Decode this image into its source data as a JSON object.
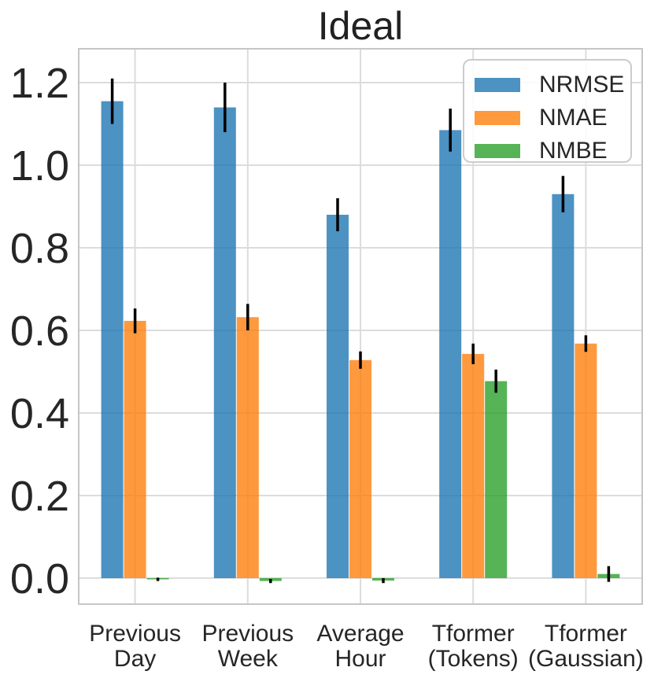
{
  "chart_data": {
    "type": "bar",
    "title": "Ideal",
    "categories": [
      "Previous Day",
      "Previous Week",
      "Average Hour",
      "Tformer (Tokens)",
      "Tformer (Gaussian)"
    ],
    "series": [
      {
        "name": "NRMSE",
        "color": "#1f77b4",
        "values": [
          1.155,
          1.14,
          0.88,
          1.085,
          0.93
        ],
        "errors": [
          0.055,
          0.06,
          0.04,
          0.052,
          0.044
        ]
      },
      {
        "name": "NMAE",
        "color": "#ff7f0e",
        "values": [
          0.623,
          0.632,
          0.528,
          0.543,
          0.568
        ],
        "errors": [
          0.03,
          0.032,
          0.021,
          0.025,
          0.02
        ]
      },
      {
        "name": "NMBE",
        "color": "#2ca02c",
        "values": [
          -0.003,
          -0.007,
          -0.006,
          0.477,
          0.01
        ],
        "errors": [
          0.004,
          0.005,
          0.006,
          0.028,
          0.019
        ]
      }
    ],
    "yticks": [
      "0.0",
      "0.2",
      "0.4",
      "0.6",
      "0.8",
      "1.0",
      "1.2"
    ],
    "ylim": [
      -0.063,
      1.282
    ],
    "xlabel": "",
    "ylabel": "",
    "grid": true,
    "bar_alpha": 0.8,
    "legend_position": "upper right"
  },
  "colors": {
    "grid": "#dcdcdc",
    "spine": "#c6c6c6",
    "text": "#262626",
    "errorbar": "#000000",
    "background": "#ffffff"
  }
}
